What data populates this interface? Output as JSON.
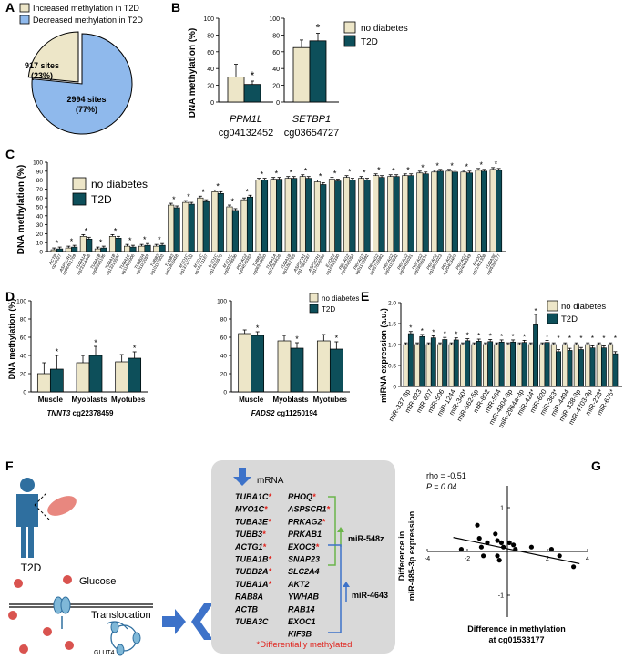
{
  "colors": {
    "no_diabetes": "#ede6c8",
    "t2d": "#0d4f5a",
    "pie_increased": "#ede6c8",
    "pie_decreased": "#8fb9ec",
    "highlight_red": "#e0231c",
    "arrow_blue": "#3d72c9",
    "bracket_green": "#6bb54a",
    "panel_gray": "#d9d9d9",
    "person_blue": "#2f6f9f",
    "glucose_red": "#d9534f",
    "muscle_pink": "#e8877f"
  },
  "panel_labels": {
    "a": "A",
    "b": "B",
    "c": "C",
    "d": "D",
    "e": "E",
    "f": "F",
    "g": "G"
  },
  "common": {
    "no_diabetes": "no diabetes",
    "t2d": "T2D",
    "dna_methylation_pct": "DNA methylation (%)"
  },
  "panel_a": {
    "legend_increased": "Increased methylation in T2D",
    "legend_decreased": "Decreased methylation in T2D",
    "slice_increased_count": "917 sites",
    "slice_increased_pct": "(23%)",
    "slice_decreased_count": "2994 sites",
    "slice_decreased_pct": "(77%)"
  },
  "panel_b": {
    "charts": [
      {
        "gene": "PPM1L",
        "cpg": "cg04132452",
        "ylim": [
          0,
          100
        ],
        "ticks": [
          "0",
          "20",
          "40",
          "60",
          "80",
          "100"
        ],
        "no_diabetes": 30,
        "no_diabetes_err": 15,
        "t2d": 21,
        "t2d_err": 4,
        "sig": "*"
      },
      {
        "gene": "SETBP1",
        "cpg": "cg03654727",
        "ylim": [
          0,
          100
        ],
        "ticks": [
          "0",
          "20",
          "40",
          "60",
          "80",
          "100"
        ],
        "no_diabetes": 65,
        "no_diabetes_err": 9,
        "t2d": 73,
        "t2d_err": 9,
        "sig": "*"
      }
    ]
  },
  "chart_data": [
    {
      "type": "pie",
      "panel": "A",
      "labels": [
        "Increased methylation in T2D",
        "Decreased methylation in T2D"
      ],
      "values": [
        917,
        2994
      ],
      "percent": [
        23,
        77
      ]
    },
    {
      "type": "bar",
      "panel": "B",
      "categories": [
        "PPM1L cg04132452",
        "SETBP1 cg03654727"
      ],
      "ylabel": "DNA methylation (%)",
      "ylim": [
        0,
        100
      ],
      "series": [
        {
          "name": "no diabetes",
          "values": [
            30,
            65
          ]
        },
        {
          "name": "T2D",
          "values": [
            21,
            73
          ]
        }
      ]
    },
    {
      "type": "bar",
      "panel": "C",
      "ylabel": "DNA methylation (%)",
      "ylim": [
        0,
        100
      ],
      "yticks": [
        "0",
        "10",
        "20",
        "30",
        "40",
        "50",
        "60",
        "70",
        "80",
        "90",
        "100"
      ],
      "genes": [
        "ACTB",
        "ASPSCR1",
        "TUBA1A",
        "TUBA1B",
        "TUBA1B",
        "TUBA1C",
        "TUBB2A",
        "TUBB3",
        "TUBB3",
        "MYO1C",
        "MYO1C",
        "MYO1C",
        "MYO1C",
        "PRKAG2",
        "TUBB3",
        "TUBA1A",
        "TUBA1B",
        "ASPSCR1",
        "ASPSCR1",
        "EXOC3",
        "PRKAG2",
        "PRKAG2",
        "PRKAG2",
        "PRKAG2",
        "PRKAG2",
        "PRKAG2",
        "PRKAG2",
        "PRKAG2",
        "PRKAG2",
        "RHOQ",
        "TUBA3E"
      ],
      "cpgs": [
        "cg16027",
        "cg08491769",
        "cg23104446",
        "cg06315195",
        "cg13213597",
        "cg11825906",
        "cg01162059",
        "cg10197903",
        "cg01830458",
        "cg13717702",
        "cg13171167",
        "cg13300575",
        "cg00279596",
        "cg04670383",
        "cg06913660",
        "cg22384626",
        "cg11887725",
        "cg17382287",
        "cg17606556",
        "cg16813330",
        "cg08315054",
        "cg01128992",
        "cg05730982",
        "cg04153592",
        "cg08456031",
        "cg03696524",
        "cg19605023",
        "cg20403463",
        "cg24068349",
        "cg21461308",
        "cg05395177"
      ],
      "series": [
        {
          "name": "no diabetes",
          "values": [
            2,
            4,
            17,
            3,
            17,
            6,
            6,
            6,
            52,
            55,
            60,
            67,
            50,
            58,
            80,
            81,
            82,
            84,
            78,
            81,
            83,
            82,
            85,
            84,
            85,
            88,
            89,
            90,
            89,
            91,
            92
          ]
        },
        {
          "name": "T2D",
          "values": [
            3,
            5,
            14,
            4,
            15,
            5,
            7,
            7,
            49,
            53,
            56,
            65,
            46,
            61,
            80,
            81,
            82,
            82,
            75,
            79,
            80,
            80,
            83,
            84,
            85,
            87,
            90,
            89,
            88,
            90,
            91
          ]
        }
      ],
      "significant": "all"
    },
    {
      "type": "bar",
      "panel": "D",
      "gene": "TNNT3",
      "cpg": "cg22378459",
      "categories": [
        "Muscle",
        "Myoblasts",
        "Myotubes"
      ],
      "ylabel": "DNA methylation (%)",
      "ylim": [
        0,
        100
      ],
      "series": [
        {
          "name": "no diabetes",
          "values": [
            20,
            32,
            33
          ]
        },
        {
          "name": "T2D",
          "values": [
            25,
            40,
            37
          ]
        }
      ]
    },
    {
      "type": "bar",
      "panel": "D",
      "gene": "FADS2",
      "cpg": "cg11250194",
      "categories": [
        "Muscle",
        "Myoblasts",
        "Myotubes"
      ],
      "ylim": [
        0,
        100
      ],
      "series": [
        {
          "name": "no diabetes",
          "values": [
            64,
            56,
            56
          ]
        },
        {
          "name": "T2D",
          "values": [
            62,
            48,
            47
          ]
        }
      ]
    },
    {
      "type": "bar",
      "panel": "E",
      "ylabel": "miRNA expression (a.u.)",
      "ylim": [
        0,
        2
      ],
      "yticks": [
        "0",
        "0.5",
        "1.0",
        "1.5",
        "2.0"
      ],
      "categories": [
        "miR-337-3p",
        "miR-623",
        "miR-607",
        "miR-506",
        "miR-1244",
        "miR-340*",
        "miR-562-5p",
        "miR-802",
        "miR-564",
        "miR-4804-3p",
        "miR-2964a-3p",
        "miR-424*",
        "miR-620",
        "miR-363*",
        "miR-4494",
        "miR-338-3p",
        "miR-4703-3p",
        "miR-223*",
        "miR-675*"
      ],
      "series": [
        {
          "name": "no diabetes",
          "values": [
            1,
            1,
            1,
            1,
            1,
            1,
            1,
            1,
            1,
            1,
            1,
            1,
            1,
            1,
            1,
            1,
            1,
            1,
            1
          ]
        },
        {
          "name": "T2D",
          "values": [
            1.26,
            1.19,
            1.16,
            1.12,
            1.11,
            1.09,
            1.08,
            1.07,
            1.06,
            1.06,
            1.05,
            1.47,
            1.05,
            0.83,
            0.86,
            0.88,
            0.92,
            0.92,
            0.78
          ]
        }
      ]
    },
    {
      "type": "scatter",
      "panel": "G",
      "xlabel": "Difference in methylation at cg01533177",
      "ylabel": "Difference in miR-485-3p expression",
      "xlim": [
        -4,
        4
      ],
      "ylim": [
        -1.5,
        1.5
      ],
      "points": [
        [
          -2.3,
          0.05
        ],
        [
          -1.5,
          0.6
        ],
        [
          -1.4,
          0.3
        ],
        [
          -1.3,
          0.1
        ],
        [
          -1.2,
          -0.1
        ],
        [
          -1.0,
          0.2
        ],
        [
          -0.6,
          0.4
        ],
        [
          -0.5,
          0.25
        ],
        [
          -0.3,
          0.2
        ],
        [
          -0.2,
          0.1
        ],
        [
          0.1,
          0.2
        ],
        [
          0.3,
          0.15
        ],
        [
          0.4,
          0.05
        ],
        [
          -0.5,
          -0.1
        ],
        [
          -0.4,
          -0.2
        ],
        [
          1.2,
          0.1
        ],
        [
          2.2,
          0.05
        ],
        [
          2.6,
          -0.1
        ],
        [
          3.3,
          -0.35
        ]
      ],
      "annotation": "rho = -0.51, P = 0.04"
    }
  ],
  "panel_c": {
    "ylabel": "DNA methylation (%)",
    "yticks": [
      "0",
      "10",
      "20",
      "30",
      "40",
      "50",
      "60",
      "70",
      "80",
      "90",
      "100"
    ],
    "genes": [
      "ACTB",
      "ASPSCR1",
      "TUBA1A",
      "TUBA1B",
      "TUBA1B",
      "TUBA1C",
      "TUBB2A",
      "TUBB3",
      "TUBB3",
      "MYO1C",
      "MYO1C",
      "MYO1C",
      "MYO1C",
      "PRKAG2",
      "TUBB3",
      "TUBA1A",
      "TUBA1B",
      "ASPSCR1",
      "ASPSCR1",
      "EXOC3",
      "PRKAG2",
      "PRKAG2",
      "PRKAG2",
      "PRKAG2",
      "PRKAG2",
      "PRKAG2",
      "PRKAG2",
      "PRKAG2",
      "PRKAG2",
      "RHOQ",
      "TUBA3E"
    ],
    "cpgs": [
      "cg16027",
      "cg08491769",
      "cg23104446",
      "cg06315195",
      "cg13213597",
      "cg11825906",
      "cg01162059",
      "cg10197903",
      "cg01830458",
      "cg13717702",
      "cg13171167",
      "cg13300575",
      "cg00279596",
      "cg04670383",
      "cg06913660",
      "cg22384626",
      "cg11887725",
      "cg17382287",
      "cg17606556",
      "cg16813330",
      "cg08315054",
      "cg01128992",
      "cg05730982",
      "cg04153592",
      "cg08456031",
      "cg03696524",
      "cg19605023",
      "cg20403463",
      "cg24068349",
      "cg21461308",
      "cg05395177"
    ]
  },
  "panel_d": {
    "tnnt3_gene": "TNNT3",
    "tnnt3_cpg": "cg22378459",
    "fads2_gene": "FADS2",
    "fads2_cpg": "cg11250194",
    "yticks": [
      "0",
      "20",
      "40",
      "60",
      "80",
      "100"
    ]
  },
  "panel_e": {
    "ylabel": "miRNA expression (a.u.)",
    "yticks": [
      "0",
      "0.5",
      "1.0",
      "1.5",
      "2.0"
    ]
  },
  "panel_f": {
    "t2d": "T2D",
    "glucose": "Glucose",
    "translocation": "Translocation",
    "glut4": "GLUT4",
    "mrna": "mRNA",
    "genes_left": [
      "TUBA1C*",
      "MYO1C*",
      "TUBA3E*",
      "TUBB3*",
      "ACTG1*",
      "TUBA1B*",
      "TUBB2A*",
      "TUBA1A*",
      "RAB8A",
      "ACTB",
      "TUBA3C"
    ],
    "genes_right": [
      "RHOQ*",
      "ASPSCR1*",
      "PRKAG2*",
      "PRKAB1",
      "EXOC3*",
      "SNAP23",
      "SLC2A4",
      "AKT2",
      "YWHAB",
      "RAB14",
      "EXOC1",
      "KIF3B"
    ],
    "mir_a": "miR-548z",
    "mir_b": "miR-4643",
    "footnote": "*Differentially methylated"
  },
  "panel_g": {
    "rho": "rho = -0.51",
    "p": "P = 0.04",
    "ylabel_1": "Difference in",
    "ylabel_2": "miR-485-3p expression",
    "xlabel_1": "Difference in methylation",
    "xlabel_2": "at cg01533177",
    "xticks": [
      "-4",
      "-2",
      "2",
      "4"
    ],
    "yticks": [
      "1",
      "-1"
    ]
  }
}
